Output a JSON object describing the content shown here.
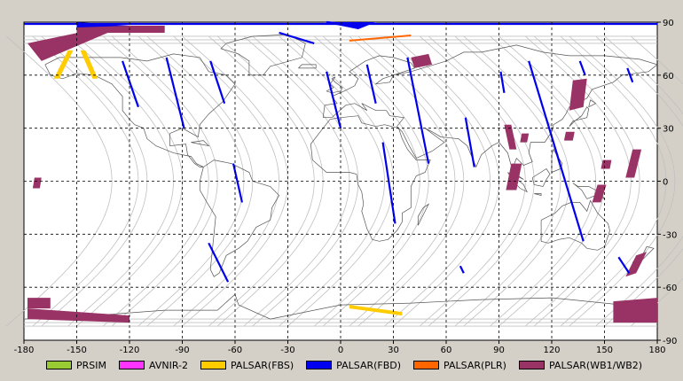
{
  "map": {
    "lon_ticks": [
      "-180",
      "-150",
      "-120",
      "-90",
      "-60",
      "-30",
      "0",
      "30",
      "60",
      "90",
      "120",
      "150",
      "180"
    ],
    "lat_ticks": [
      "90",
      "60",
      "30",
      "0",
      "-30",
      "-60",
      "-90"
    ],
    "lon_range": [
      -180,
      180
    ],
    "lat_range": [
      -90,
      90
    ],
    "grid": true
  },
  "legend": [
    {
      "label": "PRSIM",
      "color": "#99cc33"
    },
    {
      "label": "AVNIR-2",
      "color": "#ff33ff"
    },
    {
      "label": "PALSAR(FBS)",
      "color": "#ffcc00"
    },
    {
      "label": "PALSAR(FBD)",
      "color": "#0000ee"
    },
    {
      "label": "PALSAR(PLR)",
      "color": "#ff6600"
    },
    {
      "label": "PALSAR(WB1/WB2)",
      "color": "#993366"
    }
  ],
  "colors": {
    "fbs": "#ffcc00",
    "fbd": "#0000ee",
    "plr": "#ff6600",
    "wb": "#993366",
    "coast": "#555555",
    "track": "#c0c0c0"
  },
  "swaths": {
    "wb": [
      {
        "lon": [
          -178,
          -130,
          -130,
          -170
        ],
        "lat": [
          78,
          88,
          85,
          68
        ]
      },
      {
        "lon": [
          -150,
          -100,
          -100,
          -150
        ],
        "lat": [
          88,
          88,
          84,
          84
        ]
      },
      {
        "lon": [
          40,
          50,
          52,
          42
        ],
        "lat": [
          70,
          72,
          66,
          64
        ]
      },
      {
        "lon": [
          132,
          140,
          138,
          130
        ],
        "lat": [
          57,
          58,
          42,
          40
        ]
      },
      {
        "lon": [
          93,
          97,
          100,
          96
        ],
        "lat": [
          32,
          32,
          18,
          18
        ]
      },
      {
        "lon": [
          103,
          107,
          106,
          102
        ],
        "lat": [
          27,
          27,
          22,
          22
        ]
      },
      {
        "lon": [
          97,
          103,
          100,
          94
        ],
        "lat": [
          10,
          10,
          -5,
          -5
        ]
      },
      {
        "lon": [
          128,
          133,
          132,
          127
        ],
        "lat": [
          28,
          28,
          23,
          23
        ]
      },
      {
        "lon": [
          149,
          154,
          153,
          148
        ],
        "lat": [
          12,
          12,
          7,
          7
        ]
      },
      {
        "lon": [
          166,
          171,
          167,
          162
        ],
        "lat": [
          18,
          18,
          2,
          2
        ]
      },
      {
        "lon": [
          146,
          151,
          148,
          143
        ],
        "lat": [
          -2,
          -2,
          -12,
          -12
        ]
      },
      {
        "lon": [
          -174,
          -170,
          -171,
          -175
        ],
        "lat": [
          2,
          2,
          -4,
          -4
        ]
      },
      {
        "lon": [
          168,
          174,
          168,
          162
        ],
        "lat": [
          -42,
          -40,
          -52,
          -54
        ]
      },
      {
        "lon": [
          -178,
          -120,
          -120,
          -178
        ],
        "lat": [
          -72,
          -76,
          -80,
          -78
        ]
      },
      {
        "lon": [
          -178,
          -165,
          -165,
          -178
        ],
        "lat": [
          -66,
          -66,
          -72,
          -72
        ]
      },
      {
        "lon": [
          155,
          180,
          180,
          155
        ],
        "lat": [
          -68,
          -66,
          -80,
          -80
        ]
      },
      {
        "lon": [
          158,
          175,
          175,
          158
        ],
        "lat": [
          -73,
          -73,
          -79,
          -79
        ]
      }
    ],
    "fbs": [
      {
        "lon": [
          -155,
          -152,
          -160,
          -163
        ],
        "lat": [
          74,
          74,
          58,
          58
        ]
      },
      {
        "lon": [
          -148,
          -145,
          -138,
          -141
        ],
        "lat": [
          74,
          74,
          58,
          58
        ]
      },
      {
        "lon": [
          5,
          35,
          35,
          5
        ],
        "lat": [
          -70,
          -74,
          -76,
          -72
        ]
      }
    ],
    "plr": [
      {
        "lon": [
          5,
          40,
          40,
          5
        ],
        "lat": [
          80,
          83,
          82,
          79
        ]
      }
    ]
  },
  "fbd_lines": [
    {
      "lon": [
        -124,
        -115
      ],
      "lat": [
        68,
        42
      ]
    },
    {
      "lon": [
        -99,
        -89
      ],
      "lat": [
        70,
        30
      ]
    },
    {
      "lon": [
        -74,
        -66
      ],
      "lat": [
        68,
        44
      ]
    },
    {
      "lon": [
        -61,
        -56
      ],
      "lat": [
        10,
        -12
      ]
    },
    {
      "lon": [
        -75,
        -64
      ],
      "lat": [
        -35,
        -57
      ]
    },
    {
      "lon": [
        -35,
        -15
      ],
      "lat": [
        84,
        78
      ]
    },
    {
      "lon": [
        -8,
        12
      ],
      "lat": [
        90,
        88
      ]
    },
    {
      "lon": [
        -8,
        0
      ],
      "lat": [
        62,
        30
      ]
    },
    {
      "lon": [
        15,
        20
      ],
      "lat": [
        66,
        44
      ]
    },
    {
      "lon": [
        38,
        50
      ],
      "lat": [
        70,
        10
      ]
    },
    {
      "lon": [
        24,
        31
      ],
      "lat": [
        22,
        -24
      ]
    },
    {
      "lon": [
        71,
        76
      ],
      "lat": [
        36,
        8
      ]
    },
    {
      "lon": [
        107,
        138
      ],
      "lat": [
        68,
        -34
      ]
    },
    {
      "lon": [
        136,
        139
      ],
      "lat": [
        68,
        60
      ]
    },
    {
      "lon": [
        163,
        166
      ],
      "lat": [
        64,
        56
      ]
    },
    {
      "lon": [
        91,
        93
      ],
      "lat": [
        62,
        50
      ]
    },
    {
      "lon": [
        158,
        164
      ],
      "lat": [
        -43,
        -52
      ]
    },
    {
      "lon": [
        68,
        70
      ],
      "lat": [
        -48,
        -52
      ]
    },
    {
      "lon": [
        -180,
        180
      ],
      "lat": [
        89,
        89
      ]
    }
  ]
}
